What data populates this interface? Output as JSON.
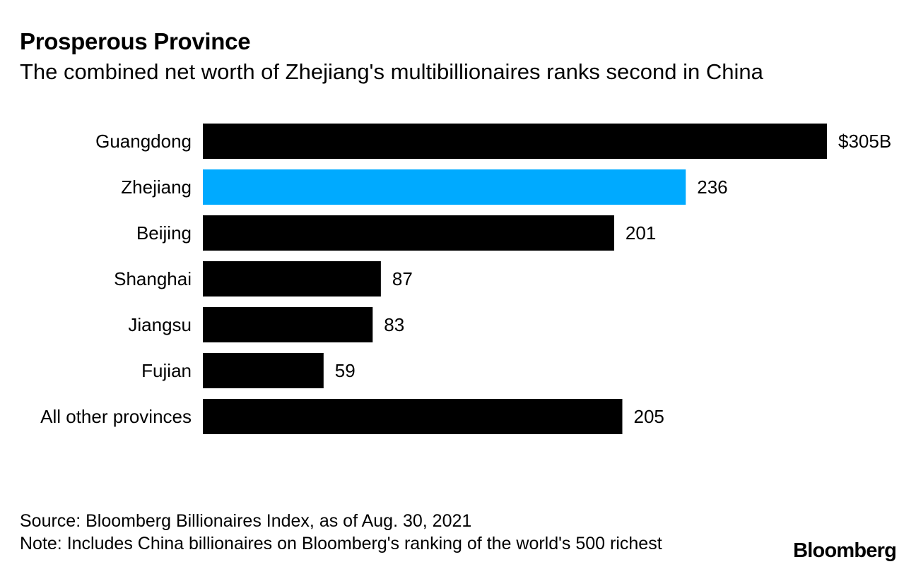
{
  "header": {
    "title": "Prosperous Province",
    "subtitle": "The combined net worth of Zhejiang's multibillionaires ranks second in China"
  },
  "footer": {
    "source": "Source: Bloomberg Billionaires Index, as of Aug. 30, 2021",
    "note": "Note: Includes China billionaires on Bloomberg's ranking of the world's 500 richest",
    "logo": "Bloomberg"
  },
  "colors": {
    "default_bar": "#000000",
    "highlight_bar": "#00aaff"
  },
  "chart_data": {
    "type": "bar",
    "orientation": "horizontal",
    "title": "Prosperous Province",
    "subtitle": "The combined net worth of Zhejiang's multibillionaires ranks second in China",
    "xlabel": "",
    "ylabel": "",
    "unit": "$B",
    "xlim": [
      0,
      305
    ],
    "grid": false,
    "legend": "none",
    "categories": [
      "Guangdong",
      "Zhejiang",
      "Beijing",
      "Shanghai",
      "Jiangsu",
      "Fujian",
      "All other provinces"
    ],
    "values": [
      305,
      236,
      201,
      87,
      83,
      59,
      205
    ],
    "value_labels": [
      "$305B",
      "236",
      "201",
      "87",
      "83",
      "59",
      "205"
    ],
    "highlight": [
      "Zhejiang"
    ]
  }
}
